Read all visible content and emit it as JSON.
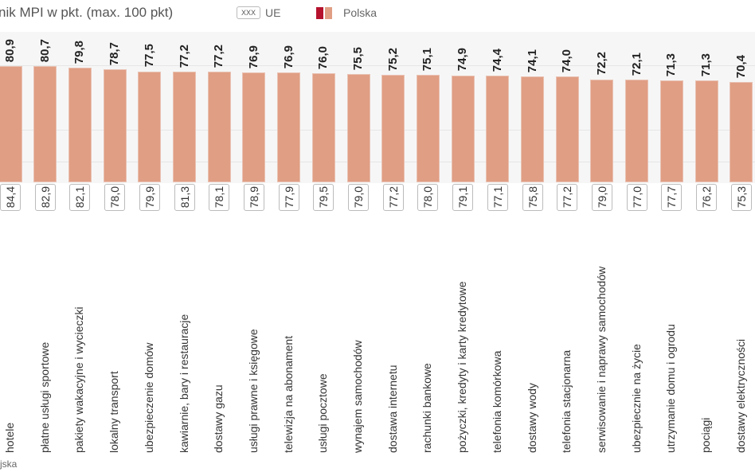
{
  "title": "nik MPI w pkt. (max. 100 pkt)",
  "legend": {
    "eu_box": "XXX",
    "eu_label": "UE",
    "pl_label": "Polska",
    "pl_colors": [
      "#b5122e",
      "#e09e84"
    ]
  },
  "source": "jska",
  "chart_data": {
    "type": "bar",
    "title": "nik MPI w pkt. (max. 100 pkt)",
    "categories": [
      "hotele",
      "płatne usługi sportowe",
      "pakiety wakacyjne i wycieczki",
      "lokalny transport",
      "ubezpieczenie domów",
      "kawiarnie, bary i restauracje",
      "dostawy gazu",
      "usługi prawne i księgowe",
      "telewizja na abonament",
      "usługi pocztowe",
      "wynajem samochodów",
      "dostawa internetu",
      "rachunki bankowe",
      "pożyczki, kredyty i karty kredytowe",
      "telefonia komórkowa",
      "dostawy wody",
      "telefonia stacjonarna",
      "serwisowanie i naprawy samochodów",
      "ubezpiecznie na życie",
      "utrzymanie domu i ogrodu",
      "pociągi",
      "dostawy elektryczności"
    ],
    "series": [
      {
        "name": "Polska",
        "color": "#e09e84",
        "values": [
          80.9,
          80.7,
          79.8,
          78.7,
          77.5,
          77.2,
          77.2,
          76.9,
          76.9,
          76.0,
          75.5,
          75.2,
          75.1,
          74.9,
          74.4,
          74.1,
          74.0,
          72.2,
          72.1,
          71.3,
          71.3,
          70.4
        ],
        "labels": [
          "80,9",
          "80,7",
          "79,8",
          "78,7",
          "77,5",
          "77,2",
          "77,2",
          "76,9",
          "76,9",
          "76,0",
          "75,5",
          "75,2",
          "75,1",
          "74,9",
          "74,4",
          "74,1",
          "74,0",
          "72,2",
          "72,1",
          "71,3",
          "71,3",
          "70,4"
        ]
      },
      {
        "name": "UE",
        "values": [
          84.4,
          82.9,
          82.1,
          78.0,
          79.9,
          81.3,
          78.1,
          78.9,
          77.9,
          79.5,
          79.0,
          77.2,
          78.0,
          79.1,
          77.1,
          75.8,
          77.2,
          79.0,
          77.0,
          77.7,
          76.2,
          75.3
        ],
        "labels": [
          "84,4",
          "82,9",
          "82,1",
          "78,0",
          "79,9",
          "81,3",
          "78,1",
          "78,9",
          "77,9",
          "79,5",
          "79,0",
          "77,2",
          "78,0",
          "79,1",
          "77,1",
          "75,8",
          "77,2",
          "79,0",
          "77,0",
          "77,7",
          "76,2",
          "75,3"
        ]
      }
    ],
    "ylim": [
      0,
      100
    ],
    "grid": true,
    "legend_position": "top"
  }
}
